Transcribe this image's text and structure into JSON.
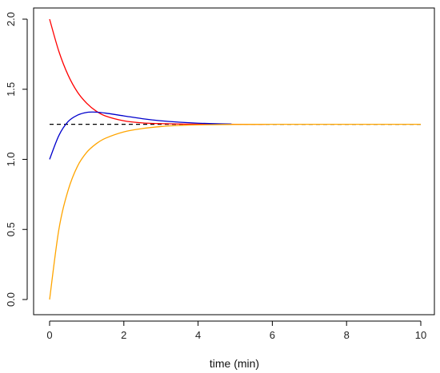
{
  "chart_data": {
    "type": "line",
    "title": "",
    "xlabel": "time (min)",
    "ylabel": "",
    "xlim": [
      0,
      10
    ],
    "ylim": [
      0,
      2
    ],
    "x_ticks": [
      0,
      2,
      4,
      6,
      8,
      10
    ],
    "x_tick_labels": [
      "0",
      "2",
      "4",
      "6",
      "8",
      "10"
    ],
    "y_ticks": [
      0.0,
      0.5,
      1.0,
      1.5,
      2.0
    ],
    "y_tick_labels": [
      "0.0",
      "0.5",
      "1.0",
      "1.5",
      "2.0"
    ],
    "grid": false,
    "legend": "none",
    "reference_line": {
      "y": 1.25,
      "x_range": [
        0,
        10
      ],
      "style": "dashed",
      "color": "#000000"
    },
    "series": [
      {
        "color": "#ff0000",
        "x": [
          0,
          0.25,
          0.5,
          0.75,
          1.0,
          1.25,
          1.5,
          2.0,
          2.5,
          3.0,
          3.5,
          4.0,
          5.0,
          5.8
        ],
        "y": [
          2.0,
          1.77,
          1.6,
          1.48,
          1.4,
          1.345,
          1.31,
          1.275,
          1.26,
          1.255,
          1.252,
          1.251,
          1.25,
          1.25
        ]
      },
      {
        "color": "#0000cc",
        "x": [
          0,
          0.25,
          0.5,
          0.75,
          1.0,
          1.25,
          1.5,
          2.0,
          2.5,
          3.0,
          3.5,
          4.0,
          4.5,
          4.9
        ],
        "y": [
          1.0,
          1.17,
          1.27,
          1.315,
          1.335,
          1.337,
          1.33,
          1.31,
          1.29,
          1.275,
          1.265,
          1.258,
          1.254,
          1.252
        ]
      },
      {
        "color": "#ffa500",
        "x": [
          0,
          0.25,
          0.5,
          0.75,
          1.0,
          1.25,
          1.5,
          2.0,
          2.5,
          3.0,
          3.5,
          4.0,
          5.0,
          6.0,
          7.0,
          8.0,
          9.0,
          10.0
        ],
        "y": [
          0.0,
          0.5,
          0.78,
          0.95,
          1.05,
          1.11,
          1.15,
          1.196,
          1.22,
          1.234,
          1.242,
          1.246,
          1.249,
          1.25,
          1.25,
          1.25,
          1.25,
          1.25
        ]
      }
    ]
  }
}
